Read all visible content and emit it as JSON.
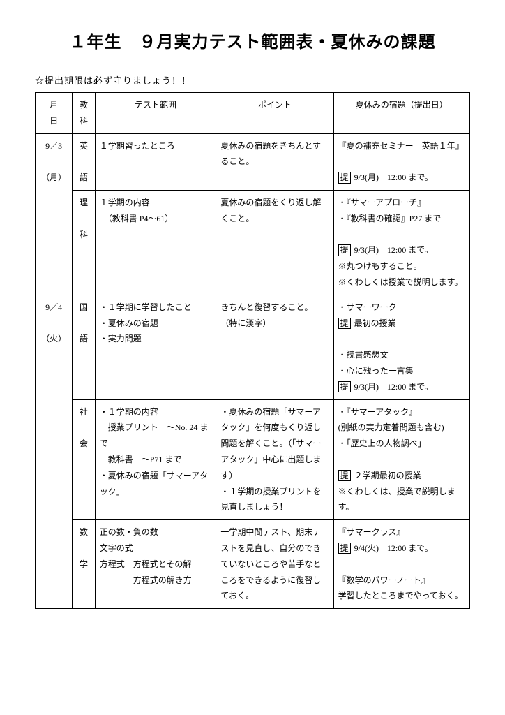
{
  "title": "１年生　９月実力テスト範囲表・夏休みの課題",
  "note": "☆提出期限は必ず守りましょう！！",
  "headers": {
    "date": "月日",
    "subject": "教科",
    "range": "テスト範囲",
    "point": "ポイント",
    "homework": "夏休みの宿題（提出日）"
  },
  "rows": [
    {
      "date_top": "9／3",
      "date_bottom": "（月）",
      "subject": "英語",
      "range": "１学期習ったところ",
      "point": "夏休みの宿題をきちんとすること。",
      "homework_main": "『夏の補充セミナー　英語１年』",
      "homework_deadline": "提",
      "homework_deadline_text": " 9/3(月)　12:00 まで。",
      "rowspan_date": 2
    },
    {
      "subject": "理科",
      "range": "１学期の内容\n　（教科書 P4～61）",
      "point": "夏休みの宿題をくり返し解くこと。",
      "homework_main": "・『サマーアプローチ』\n・『教科書の確認』P27 まで",
      "homework_deadline": "提",
      "homework_deadline_text": " 9/3(月)　12:00 まで。",
      "homework_extra": "※丸つけもすること。\n※くわしくは授業で説明します。"
    },
    {
      "date_top": "9／4",
      "date_bottom": "（火）",
      "subject": "国語",
      "range": "・１学期に学習したこと\n・夏休みの宿題\n・実力問題",
      "point": "きちんと復習すること。\n（特に漢字）",
      "homework_lines": [
        {
          "text": "・サマーワーク"
        },
        {
          "box": "提",
          "text": " 最初の授業"
        },
        {
          "text": ""
        },
        {
          "text": "・読書感想文"
        },
        {
          "text": "・心に残った一言集"
        },
        {
          "box": "提",
          "text": " 9/3(月)　12:00 まで。"
        }
      ],
      "rowspan_date": 3
    },
    {
      "subject": "社会",
      "range": "・１学期の内容\n　授業プリント　～No. 24 まで\n　教科書　～P71 まで\n・夏休みの宿題「サマーアタック」",
      "point": "・夏休みの宿題「サマーアタック」を何度もくり返し問題を解くこと。（「サマーアタック」中心に出題します）\n・１学期の授業プリントを見直しましょう！",
      "homework_lines": [
        {
          "text": "・『サマーアタック』"
        },
        {
          "text": "(別紙の実力定着問題も含む)"
        },
        {
          "text": "・「歴史上の人物調べ」"
        },
        {
          "text": ""
        },
        {
          "box": "提",
          "text": " ２学期最初の授業"
        },
        {
          "text": "※くわしくは、授業で説明します。"
        }
      ]
    },
    {
      "subject": "数学",
      "range": "正の数・負の数\n文字の式\n方程式　方程式とその解\n　　　　方程式の解き方",
      "point": "一学期中間テスト、期末テストを見直し、自分のできていないところや苦手なところをできるように復習しておく。",
      "homework_lines": [
        {
          "text": "『サマークラス』"
        },
        {
          "box": "提",
          "text": " 9/4(火)　12:00 まで。"
        },
        {
          "text": ""
        },
        {
          "text": "『数学のパワーノート』"
        },
        {
          "text": "学習したところまでやっておく。"
        }
      ]
    }
  ]
}
